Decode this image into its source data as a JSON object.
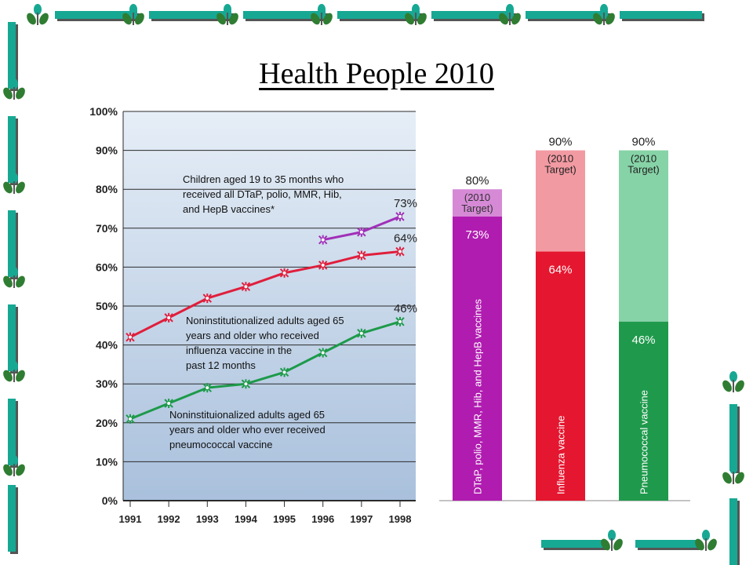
{
  "slide": {
    "title": "Health People 2010"
  },
  "colors": {
    "accent_teal": "#17a893",
    "accent_green": "#2f7d32",
    "plot_bg_top": "#e6eef7",
    "plot_bg_bottom": "#a9c0dc"
  },
  "chart_data": [
    {
      "type": "line",
      "x": [
        1991,
        1992,
        1993,
        1994,
        1995,
        1996,
        1997,
        1998
      ],
      "ylim": [
        0,
        100
      ],
      "y_unit": "%",
      "yticks": [
        "0%",
        "10%",
        "20%",
        "30%",
        "40%",
        "50%",
        "60%",
        "70%",
        "80%",
        "90%",
        "100%"
      ],
      "xticks": [
        "1991",
        "1992",
        "1993",
        "1994",
        "1995",
        "1996",
        "1997",
        "1998"
      ],
      "grid": true,
      "series": [
        {
          "key": "children",
          "name": "Children aged 19 to 35 months who received all DTaP, polio, MMR, Hib, and HepB vaccines*",
          "color": "#a030b8",
          "x": [
            1996,
            1997,
            1998
          ],
          "values": [
            67,
            69,
            73
          ],
          "end_label": "73%"
        },
        {
          "key": "influenza",
          "name": "Noninstitutionalized adults aged 65 years and older who received influenza vaccine in the past 12 months",
          "color": "#e01e3c",
          "x": [
            1991,
            1992,
            1993,
            1994,
            1995,
            1996,
            1997,
            1998
          ],
          "values": [
            42,
            47,
            52,
            55,
            58.5,
            60.5,
            63,
            64
          ],
          "end_label": "64%"
        },
        {
          "key": "pneumococcal",
          "name": "Noninstituionalized adults aged 65 years and older who ever received pneumococcal vaccine",
          "color": "#1d9a4a",
          "x": [
            1991,
            1992,
            1993,
            1994,
            1995,
            1996,
            1997,
            1998
          ],
          "values": [
            21,
            25,
            29,
            30,
            33,
            38,
            43,
            46
          ],
          "end_label": "46%"
        }
      ],
      "annotations": {
        "children": [
          "Children aged 19 to 35 months who",
          "received all DTaP, polio, MMR, Hib,",
          "and HepB vaccines*"
        ],
        "influenza": [
          "Noninstitutionalized adults aged 65",
          "years and older who received",
          "influenza vaccine in the",
          "past 12 months"
        ],
        "pneumococcal": [
          "Noninstituionalized adults aged 65",
          "years and older who ever received",
          "pneumococcal vaccine"
        ]
      }
    },
    {
      "type": "bar",
      "ylim": [
        0,
        100
      ],
      "y_unit": "%",
      "bars": [
        {
          "category": "DTaP, polio, MMR, Hib, and HepB vaccines",
          "value": 73,
          "value_label": "73%",
          "target": 80,
          "target_label": "80%",
          "target_note": [
            "(2010",
            "Target)"
          ],
          "color": "#b01cb0",
          "target_color": "#d68ad6"
        },
        {
          "category": "Influenza vaccine",
          "value": 64,
          "value_label": "64%",
          "target": 90,
          "target_label": "90%",
          "target_note": [
            "(2010",
            "Target)"
          ],
          "color": "#e5162f",
          "target_color": "#f29aa2"
        },
        {
          "category": "Pneumococcal vaccine",
          "value": 46,
          "value_label": "46%",
          "target": 90,
          "target_label": "90%",
          "target_note": [
            "(2010",
            "Target)"
          ],
          "color": "#1f9a4c",
          "target_color": "#86d3a7"
        }
      ]
    }
  ]
}
